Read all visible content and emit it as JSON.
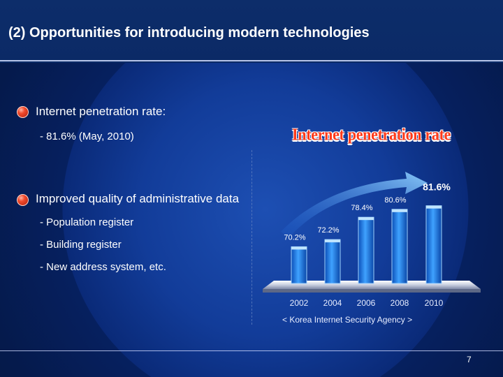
{
  "slide": {
    "title": "(2) Opportunities for introducing modern technologies",
    "bullets": [
      {
        "label": "Internet penetration rate:",
        "subitems": [
          "-  81.6% (May, 2010)"
        ]
      },
      {
        "label": "Improved quality of administrative data",
        "subitems": [
          "-  Population register",
          "-  Building register",
          "-  New address system, etc."
        ]
      }
    ],
    "source": "< Korea Internet Security Agency >",
    "page_number": "7",
    "colors": {
      "accent_red": "#ff3a1a",
      "bar_blue": "#1f7fe6",
      "background_blue": "#0a2a78"
    }
  },
  "chart_data": {
    "type": "bar",
    "title": "Internet penetration rate",
    "categories": [
      "2002",
      "2004",
      "2006",
      "2008",
      "2010"
    ],
    "values": [
      70.2,
      72.2,
      78.4,
      80.6,
      81.6
    ],
    "data_labels": [
      "70.2%",
      "72.2%",
      "78.4%",
      "80.6%",
      "81.6%"
    ],
    "ylim": [
      60,
      86
    ],
    "grid": false,
    "legend": "none",
    "annotations": [
      "upward arrow over bars"
    ]
  }
}
